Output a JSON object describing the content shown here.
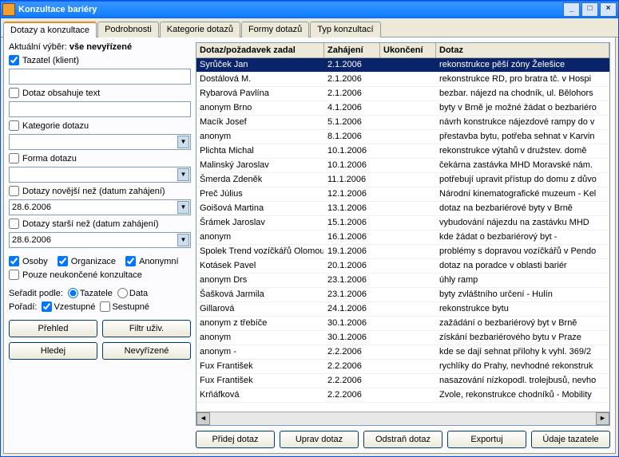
{
  "window": {
    "title": "Konzultace bariéry"
  },
  "tabs": [
    "Dotazy a konzultace",
    "Podrobnosti",
    "Kategorie dotazů",
    "Formy dotazů",
    "Typ konzultací"
  ],
  "activeTab": 0,
  "filter": {
    "selection_prefix": "Aktuální výběr: ",
    "selection_value": "vše nevyřízené",
    "tazatel_label": "Tazatel (klient)",
    "tazatel_checked": true,
    "tazatel_value": "",
    "text_label": "Dotaz obsahuje text",
    "text_checked": false,
    "text_value": "",
    "kategorie_label": "Kategorie dotazu",
    "kategorie_checked": false,
    "forma_label": "Forma dotazu",
    "forma_checked": false,
    "novejsi_label": "Dotazy novější než (datum zahájení)",
    "novejsi_checked": false,
    "novejsi_value": "28.6.2006",
    "starsi_label": "Dotazy starší než (datum zahájení)",
    "starsi_checked": false,
    "starsi_value": "28.6.2006",
    "osoby_label": "Osoby",
    "osoby_checked": true,
    "organizace_label": "Organizace",
    "organizace_checked": true,
    "anonymni_label": "Anonymní",
    "anonymni_checked": true,
    "neukoncene_label": "Pouze neukončené konzultace",
    "neukoncene_checked": false,
    "sortby_label": "Seřadit podle:",
    "sort_tazatele": "Tazatele",
    "sort_data": "Data",
    "sort_sel": "tazatele",
    "order_label": "Pořadí:",
    "order_vzestupne": "Vzestupné",
    "order_sestupne": "Sestupné",
    "order_sel": "vzestupne",
    "buttons": {
      "prehled": "Přehled",
      "filtr": "Filtr uživ.",
      "hledej": "Hledej",
      "nevyrizene": "Nevyřízené"
    }
  },
  "grid": {
    "columns": [
      "Dotaz/požadavek zadal",
      "Zahájení",
      "Ukončení",
      "Dotaz"
    ],
    "selected": 0,
    "rows": [
      [
        "Syrůček Jan",
        "2.1.2006",
        "",
        "rekonstrukce pěší zóny Želešice"
      ],
      [
        "Dostálová M.",
        "2.1.2006",
        "",
        "rekonstrukce RD, pro bratra tč. v Hospi"
      ],
      [
        "Rybarová Pavlína",
        "2.1.2006",
        "",
        "bezbar. nájezd na chodník, ul. Bělohors"
      ],
      [
        "anonym Brno",
        "4.1.2006",
        "",
        "byty v Brně je možné žádat o bezbariéro"
      ],
      [
        "Macík Josef",
        "5.1.2006",
        "",
        "návrh konstrukce nájezdové rampy do v"
      ],
      [
        "anonym",
        "8.1.2006",
        "",
        "přestavba bytu, potřeba sehnat v Karvin"
      ],
      [
        "Plichta Michal",
        "10.1.2006",
        "",
        "rekonstrukce výtahů v družstev. domě"
      ],
      [
        "Malinský Jaroslav",
        "10.1.2006",
        "",
        "čekárna zastávka MHD Moravské nám."
      ],
      [
        "Šmerda Zdeněk",
        "11.1.2006",
        "",
        "potřebují upravit přístup do domu z důvo"
      ],
      [
        "Preč Július",
        "12.1.2006",
        "",
        "Národní kinematografické muzeum - Kel"
      ],
      [
        "Goišová Martina",
        "13.1.2006",
        "",
        "dotaz na bezbariérové byty v Brně"
      ],
      [
        "Šrámek Jaroslav",
        "15.1.2006",
        "",
        "vybudování nájezdu na zastávku MHD"
      ],
      [
        "anonym",
        "16.1.2006",
        "",
        "kde žádat o bezbariérový byt -"
      ],
      [
        "Spolek Trend vozíčkářů Olomouc",
        "19.1.2006",
        "",
        "problémy s dopravou vozíčkářů v Pendo"
      ],
      [
        "Kotásek Pavel",
        "20.1.2006",
        "",
        "dotaz na poradce v oblasti bariér"
      ],
      [
        "anonym Drs",
        "23.1.2006",
        "",
        "úhly ramp"
      ],
      [
        "Šašková Jarmila",
        "23.1.2006",
        "",
        "byty zvláštního určení - Hulín"
      ],
      [
        "Gillarová",
        "24.1.2006",
        "",
        "rekonstrukce bytu"
      ],
      [
        "anonym z třebíče",
        "30.1.2006",
        "",
        "zažádání o bezbariérový byt v Brně"
      ],
      [
        "anonym",
        "30.1.2006",
        "",
        "získání bezbariérového bytu v Praze"
      ],
      [
        "anonym -",
        "2.2.2006",
        "",
        "kde se dají sehnat přílohy k vyhl. 369/2"
      ],
      [
        "Fux František",
        "2.2.2006",
        "",
        "rychlíky do Prahy, nevhodné rekonstruk"
      ],
      [
        "Fux František",
        "2.2.2006",
        "",
        "nasazování nízkopodl. trolejbusů, nevho"
      ],
      [
        "Krňáfková",
        "2.2.2006",
        "",
        "Zvole, rekonstrukce chodníků - Mobility"
      ]
    ]
  },
  "bottomButtons": [
    "Přidej dotaz",
    "Uprav dotaz",
    "Odstraň dotaz",
    "Exportuj",
    "Údaje tazatele"
  ]
}
